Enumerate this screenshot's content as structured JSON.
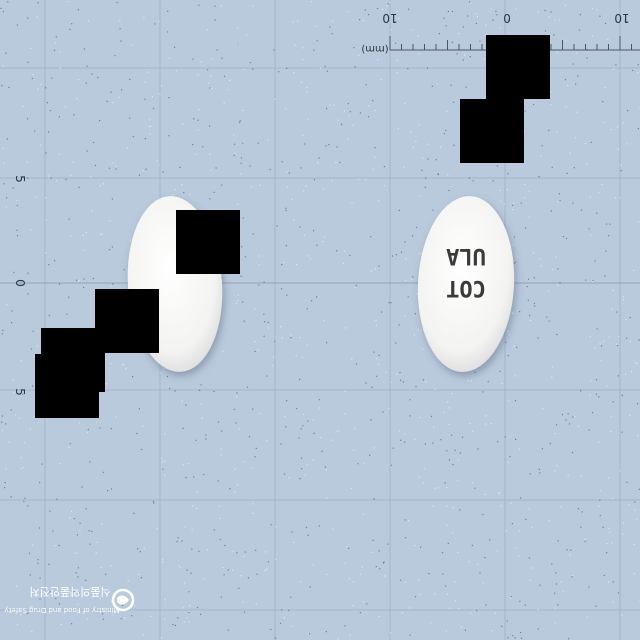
{
  "scale": {
    "unit_label": "(mm)",
    "top_tick_labels": [
      "10",
      "0",
      "10"
    ],
    "left_tick_labels": [
      "5",
      "0",
      "5"
    ]
  },
  "pills": [
    {
      "name": "pill-front",
      "shape": "oval",
      "color": "white",
      "imprint_lines": []
    },
    {
      "name": "pill-back",
      "shape": "oval",
      "color": "white",
      "imprint_lines": [
        "ULA",
        "COT"
      ]
    }
  ],
  "watermark": {
    "korean_text": "식품의약품안전처",
    "english_text": "Ministry of Food and Drug Safety",
    "logo": "mfds-logo"
  },
  "redactions": 6,
  "colors": {
    "background": "#b9cadc",
    "grid": "#9fb3c8",
    "pill": "#f7f7f5"
  }
}
